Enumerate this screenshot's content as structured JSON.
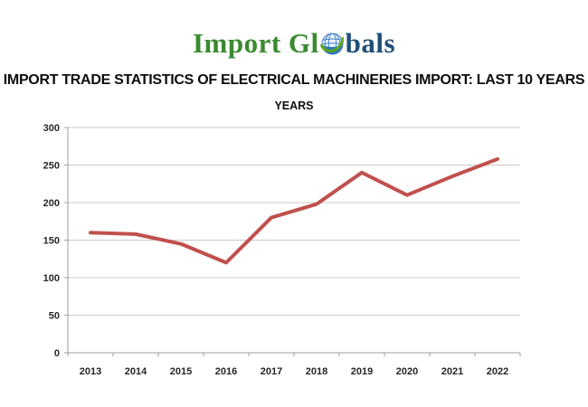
{
  "logo": {
    "text_left": "Import Gl",
    "text_right": "bals",
    "green": "#3a8a2f",
    "blue": "#1f4e79"
  },
  "header": {
    "title": "IMPORT TRADE STATISTICS OF ELECTRICAL MACHINERIES IMPORT: LAST 10 YEARS"
  },
  "chart_data": {
    "type": "line",
    "title": "YEARS",
    "categories": [
      "2013",
      "2014",
      "2015",
      "2016",
      "2017",
      "2018",
      "2019",
      "2020",
      "2021",
      "2022"
    ],
    "values": [
      160,
      158,
      145,
      120,
      180,
      198,
      240,
      210,
      235,
      258
    ],
    "xlabel": "",
    "ylabel": "",
    "ylim": [
      0,
      300
    ],
    "yticks": [
      0,
      50,
      100,
      150,
      200,
      250,
      300
    ],
    "grid": true,
    "legend": "none",
    "line_color": "#c0504d",
    "line_width": 4,
    "gridline_color": "#c9c9c9",
    "axis_color": "#9e9e9e"
  }
}
